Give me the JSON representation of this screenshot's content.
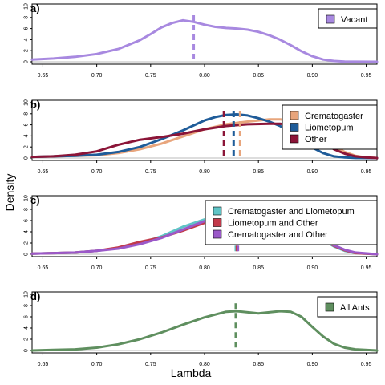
{
  "figure": {
    "ylabel": "Density",
    "xlabel": "Lambda"
  },
  "chart_data": [
    {
      "type": "line",
      "panel_label": "a)",
      "xlim": [
        0.64,
        0.96
      ],
      "ylim": [
        0,
        10
      ],
      "x_ticks": [
        "0.65",
        "0.70",
        "0.75",
        "0.80",
        "0.85",
        "0.90",
        "0.95"
      ],
      "y_ticks": [
        "0",
        "2",
        "4",
        "6",
        "8",
        "10"
      ],
      "legend_position": "top-right",
      "series": [
        {
          "name": "Vacant",
          "color": "#a889e0",
          "mean": 0.79,
          "x": [
            0.64,
            0.66,
            0.68,
            0.7,
            0.72,
            0.74,
            0.75,
            0.76,
            0.77,
            0.78,
            0.79,
            0.8,
            0.81,
            0.82,
            0.83,
            0.84,
            0.85,
            0.86,
            0.87,
            0.88,
            0.89,
            0.9,
            0.91,
            0.92,
            0.93,
            0.94,
            0.96
          ],
          "y": [
            0.4,
            0.6,
            0.9,
            1.4,
            2.3,
            3.9,
            5.0,
            6.2,
            7.0,
            7.5,
            7.2,
            6.7,
            6.3,
            6.1,
            6.0,
            5.8,
            5.4,
            4.8,
            4.0,
            3.0,
            1.9,
            1.0,
            0.4,
            0.15,
            0.05,
            0.02,
            0.0
          ]
        }
      ]
    },
    {
      "type": "line",
      "panel_label": "b)",
      "xlim": [
        0.64,
        0.96
      ],
      "ylim": [
        0,
        10
      ],
      "x_ticks": [
        "0.65",
        "0.70",
        "0.75",
        "0.80",
        "0.85",
        "0.90",
        "0.95"
      ],
      "y_ticks": [
        "0",
        "2",
        "4",
        "6",
        "8",
        "10"
      ],
      "legend_position": "top-right",
      "series": [
        {
          "name": "Crematogaster",
          "color": "#e8a57c",
          "mean": 0.833,
          "x": [
            0.64,
            0.66,
            0.68,
            0.7,
            0.72,
            0.74,
            0.76,
            0.78,
            0.8,
            0.82,
            0.84,
            0.86,
            0.87,
            0.88,
            0.89,
            0.9,
            0.91,
            0.92,
            0.93,
            0.94,
            0.95,
            0.96
          ],
          "y": [
            0.2,
            0.3,
            0.4,
            0.5,
            0.9,
            1.6,
            2.6,
            3.9,
            5.2,
            6.1,
            6.6,
            7.0,
            7.0,
            6.8,
            6.2,
            5.0,
            3.6,
            2.2,
            1.1,
            0.4,
            0.1,
            0.0
          ]
        },
        {
          "name": "Liometopum",
          "color": "#1f5c99",
          "mean": 0.827,
          "x": [
            0.64,
            0.66,
            0.68,
            0.7,
            0.72,
            0.74,
            0.76,
            0.78,
            0.79,
            0.8,
            0.81,
            0.82,
            0.83,
            0.84,
            0.85,
            0.86,
            0.87,
            0.88,
            0.89,
            0.9,
            0.91,
            0.92,
            0.93,
            0.94,
            0.96
          ],
          "y": [
            0.2,
            0.3,
            0.4,
            0.6,
            1.1,
            2.0,
            3.4,
            5.0,
            5.9,
            6.8,
            7.4,
            7.8,
            7.9,
            7.7,
            7.2,
            6.6,
            5.8,
            4.6,
            3.2,
            1.9,
            0.9,
            0.3,
            0.1,
            0.02,
            0.0
          ]
        },
        {
          "name": "Other",
          "color": "#8b1538",
          "mean": 0.818,
          "x": [
            0.64,
            0.66,
            0.68,
            0.7,
            0.72,
            0.74,
            0.76,
            0.78,
            0.8,
            0.82,
            0.84,
            0.86,
            0.87,
            0.88,
            0.89,
            0.9,
            0.91,
            0.92,
            0.93,
            0.94,
            0.95,
            0.96
          ],
          "y": [
            0.2,
            0.3,
            0.6,
            1.2,
            2.4,
            3.3,
            3.8,
            4.4,
            5.2,
            5.8,
            6.1,
            6.2,
            6.2,
            6.0,
            5.3,
            4.1,
            2.8,
            1.6,
            0.8,
            0.3,
            0.1,
            0.0
          ]
        }
      ]
    },
    {
      "type": "line",
      "panel_label": "c)",
      "xlim": [
        0.64,
        0.96
      ],
      "ylim": [
        0,
        10
      ],
      "x_ticks": [
        "0.65",
        "0.70",
        "0.75",
        "0.80",
        "0.85",
        "0.90",
        "0.95"
      ],
      "y_ticks": [
        "0",
        "2",
        "4",
        "6",
        "8",
        "10"
      ],
      "legend_position": "top-right",
      "series": [
        {
          "name": "Crematogaster and Liometopum",
          "color": "#5fc4c6",
          "mean": 0.829,
          "x": [
            0.64,
            0.66,
            0.68,
            0.7,
            0.72,
            0.74,
            0.76,
            0.78,
            0.8,
            0.82,
            0.84,
            0.86,
            0.88,
            0.9,
            0.91,
            0.92,
            0.93,
            0.94,
            0.96
          ],
          "y": [
            0.1,
            0.2,
            0.3,
            0.6,
            1.1,
            1.9,
            3.2,
            4.9,
            6.2,
            6.9,
            7.0,
            6.6,
            5.6,
            3.7,
            2.5,
            1.4,
            0.6,
            0.2,
            0.0
          ]
        },
        {
          "name": "Liometopum and Other",
          "color": "#c23a4a",
          "mean": 0.83,
          "x": [
            0.64,
            0.66,
            0.68,
            0.7,
            0.72,
            0.74,
            0.76,
            0.78,
            0.8,
            0.82,
            0.84,
            0.86,
            0.88,
            0.9,
            0.91,
            0.92,
            0.93,
            0.94,
            0.96
          ],
          "y": [
            0.1,
            0.2,
            0.3,
            0.6,
            1.2,
            2.2,
            3.0,
            4.2,
            5.6,
            6.6,
            7.0,
            6.7,
            5.7,
            3.8,
            2.6,
            1.5,
            0.7,
            0.2,
            0.0
          ]
        },
        {
          "name": "Crematogaster and Other",
          "color": "#9b59c9",
          "mean": 0.831,
          "x": [
            0.64,
            0.66,
            0.68,
            0.7,
            0.72,
            0.74,
            0.76,
            0.78,
            0.8,
            0.82,
            0.84,
            0.86,
            0.88,
            0.9,
            0.91,
            0.92,
            0.93,
            0.94,
            0.96
          ],
          "y": [
            0.1,
            0.2,
            0.3,
            0.6,
            1.0,
            1.8,
            2.9,
            4.4,
            5.9,
            6.7,
            7.0,
            6.7,
            5.7,
            3.8,
            2.7,
            1.6,
            0.8,
            0.3,
            0.0
          ]
        }
      ]
    },
    {
      "type": "line",
      "panel_label": "d)",
      "xlim": [
        0.64,
        0.96
      ],
      "ylim": [
        0,
        10
      ],
      "x_ticks": [
        "0.65",
        "0.70",
        "0.75",
        "0.80",
        "0.85",
        "0.90",
        "0.95"
      ],
      "y_ticks": [
        "0",
        "2",
        "4",
        "6",
        "8",
        "10"
      ],
      "legend_position": "top-right",
      "series": [
        {
          "name": "All Ants",
          "color": "#5f8f5f",
          "mean": 0.829,
          "x": [
            0.64,
            0.66,
            0.68,
            0.7,
            0.72,
            0.74,
            0.76,
            0.78,
            0.8,
            0.82,
            0.83,
            0.84,
            0.85,
            0.86,
            0.87,
            0.88,
            0.89,
            0.9,
            0.91,
            0.92,
            0.93,
            0.94,
            0.96
          ],
          "y": [
            0.0,
            0.1,
            0.2,
            0.5,
            1.1,
            2.0,
            3.2,
            4.6,
            5.9,
            6.9,
            7.0,
            6.8,
            6.6,
            6.8,
            7.0,
            6.9,
            6.0,
            4.2,
            2.5,
            1.2,
            0.5,
            0.2,
            0.0
          ]
        }
      ]
    }
  ]
}
